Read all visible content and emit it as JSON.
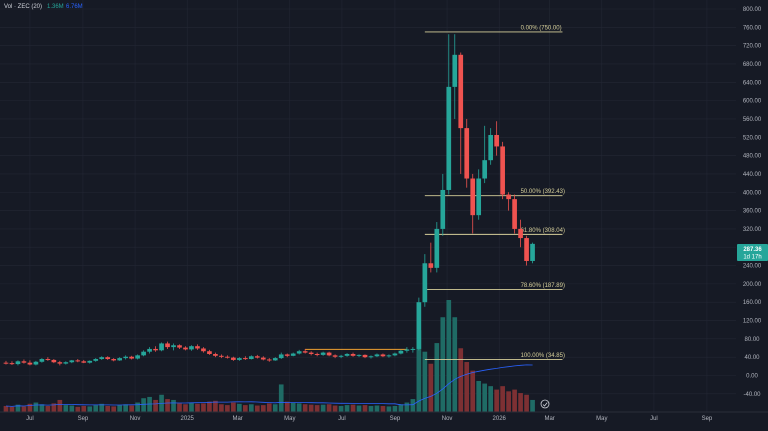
{
  "volume_legend": {
    "prefix": "Vol · ZEC (20)",
    "value_1": "1.36M",
    "value_2": "6.76M",
    "value_1_color": "#26a69a",
    "value_2_color": "#2962ff"
  },
  "price_badge": {
    "price": "287.36",
    "countdown": "1d 17h",
    "color": "#26a69a"
  },
  "colors": {
    "background": "#161a25",
    "up": "#26a69a",
    "down": "#ef5350",
    "fib_line": "#d6cf9a",
    "range_line": "#f0a030",
    "volume_ma": "#2962ff"
  },
  "chart_data": {
    "type": "candlestick",
    "symbol": "ZEC",
    "y_axis": {
      "ylim": [
        -60,
        800
      ],
      "ticks": [
        "800.00",
        "760.00",
        "720.00",
        "680.00",
        "640.00",
        "600.00",
        "560.00",
        "520.00",
        "480.00",
        "440.00",
        "400.00",
        "360.00",
        "320.00",
        "280.00",
        "240.00",
        "200.00",
        "160.00",
        "120.00",
        "80.00",
        "40.00",
        "0.00",
        "-40.00"
      ],
      "position": "right"
    },
    "x_axis": {
      "start": "2024-05-27",
      "end": "2026-10-05",
      "ticks": [
        {
          "label": "Jul",
          "date": "2024-07-01"
        },
        {
          "label": "Sep",
          "date": "2024-09-01"
        },
        {
          "label": "Nov",
          "date": "2024-11-01"
        },
        {
          "label": "2025",
          "date": "2025-01-01"
        },
        {
          "label": "Mar",
          "date": "2025-03-01"
        },
        {
          "label": "May",
          "date": "2025-05-01"
        },
        {
          "label": "Jul",
          "date": "2025-07-01"
        },
        {
          "label": "Sep",
          "date": "2025-09-01"
        },
        {
          "label": "Nov",
          "date": "2025-11-01"
        },
        {
          "label": "2026",
          "date": "2026-01-01"
        },
        {
          "label": "Mar",
          "date": "2026-03-01"
        },
        {
          "label": "May",
          "date": "2026-05-01"
        },
        {
          "label": "Jul",
          "date": "2026-07-01"
        },
        {
          "label": "Sep",
          "date": "2026-09-01"
        }
      ]
    },
    "fibonacci_levels": [
      {
        "label": "0.00% (750.00)",
        "value": 750.0
      },
      {
        "label": "50.00% (392.43)",
        "value": 392.43
      },
      {
        "label": "61.80% (308.04)",
        "value": 308.04
      },
      {
        "label": "78.60% (187.89)",
        "value": 187.89
      },
      {
        "label": "100.00% (34.85)",
        "value": 34.85
      }
    ],
    "range_line": {
      "from": "2025-05-19",
      "to": "2025-09-15",
      "value": 57
    },
    "volume_panel_ylim": [
      0,
      520
    ],
    "candles": [
      {
        "date": "2024-06-03",
        "o": 28,
        "h": 32,
        "l": 24,
        "c": 27,
        "v": 70
      },
      {
        "date": "2024-06-10",
        "o": 27,
        "h": 31,
        "l": 23,
        "c": 25,
        "v": 60
      },
      {
        "date": "2024-06-17",
        "o": 25,
        "h": 33,
        "l": 22,
        "c": 31,
        "v": 85
      },
      {
        "date": "2024-06-24",
        "o": 31,
        "h": 35,
        "l": 26,
        "c": 28,
        "v": 65
      },
      {
        "date": "2024-07-01",
        "o": 28,
        "h": 33,
        "l": 22,
        "c": 24,
        "v": 95
      },
      {
        "date": "2024-07-08",
        "o": 24,
        "h": 32,
        "l": 22,
        "c": 30,
        "v": 110
      },
      {
        "date": "2024-07-15",
        "o": 30,
        "h": 38,
        "l": 28,
        "c": 36,
        "v": 90
      },
      {
        "date": "2024-07-22",
        "o": 36,
        "h": 40,
        "l": 32,
        "c": 34,
        "v": 70
      },
      {
        "date": "2024-07-29",
        "o": 34,
        "h": 36,
        "l": 27,
        "c": 29,
        "v": 100
      },
      {
        "date": "2024-08-05",
        "o": 29,
        "h": 32,
        "l": 22,
        "c": 26,
        "v": 140
      },
      {
        "date": "2024-08-12",
        "o": 26,
        "h": 31,
        "l": 24,
        "c": 29,
        "v": 80
      },
      {
        "date": "2024-08-19",
        "o": 29,
        "h": 34,
        "l": 27,
        "c": 33,
        "v": 75
      },
      {
        "date": "2024-08-26",
        "o": 33,
        "h": 36,
        "l": 29,
        "c": 31,
        "v": 60
      },
      {
        "date": "2024-09-02",
        "o": 31,
        "h": 34,
        "l": 27,
        "c": 28,
        "v": 70
      },
      {
        "date": "2024-09-09",
        "o": 28,
        "h": 33,
        "l": 26,
        "c": 32,
        "v": 65
      },
      {
        "date": "2024-09-16",
        "o": 32,
        "h": 38,
        "l": 30,
        "c": 36,
        "v": 80
      },
      {
        "date": "2024-09-23",
        "o": 36,
        "h": 42,
        "l": 34,
        "c": 40,
        "v": 95
      },
      {
        "date": "2024-09-30",
        "o": 40,
        "h": 42,
        "l": 34,
        "c": 36,
        "v": 70
      },
      {
        "date": "2024-10-07",
        "o": 36,
        "h": 38,
        "l": 31,
        "c": 33,
        "v": 65
      },
      {
        "date": "2024-10-14",
        "o": 33,
        "h": 40,
        "l": 32,
        "c": 38,
        "v": 80
      },
      {
        "date": "2024-10-21",
        "o": 38,
        "h": 44,
        "l": 35,
        "c": 41,
        "v": 90
      },
      {
        "date": "2024-10-28",
        "o": 41,
        "h": 43,
        "l": 35,
        "c": 37,
        "v": 75
      },
      {
        "date": "2024-11-04",
        "o": 37,
        "h": 46,
        "l": 35,
        "c": 44,
        "v": 110
      },
      {
        "date": "2024-11-11",
        "o": 44,
        "h": 55,
        "l": 42,
        "c": 52,
        "v": 160
      },
      {
        "date": "2024-11-18",
        "o": 52,
        "h": 62,
        "l": 48,
        "c": 58,
        "v": 175
      },
      {
        "date": "2024-11-25",
        "o": 58,
        "h": 64,
        "l": 52,
        "c": 55,
        "v": 140
      },
      {
        "date": "2024-12-02",
        "o": 55,
        "h": 72,
        "l": 53,
        "c": 70,
        "v": 200
      },
      {
        "date": "2024-12-09",
        "o": 70,
        "h": 74,
        "l": 58,
        "c": 62,
        "v": 150
      },
      {
        "date": "2024-12-16",
        "o": 62,
        "h": 70,
        "l": 55,
        "c": 66,
        "v": 140
      },
      {
        "date": "2024-12-23",
        "o": 66,
        "h": 68,
        "l": 58,
        "c": 61,
        "v": 100
      },
      {
        "date": "2024-12-30",
        "o": 61,
        "h": 64,
        "l": 55,
        "c": 57,
        "v": 90
      },
      {
        "date": "2025-01-06",
        "o": 57,
        "h": 66,
        "l": 54,
        "c": 64,
        "v": 110
      },
      {
        "date": "2025-01-13",
        "o": 64,
        "h": 68,
        "l": 56,
        "c": 59,
        "v": 95
      },
      {
        "date": "2025-01-20",
        "o": 59,
        "h": 62,
        "l": 50,
        "c": 53,
        "v": 100
      },
      {
        "date": "2025-01-27",
        "o": 53,
        "h": 56,
        "l": 45,
        "c": 47,
        "v": 120
      },
      {
        "date": "2025-02-03",
        "o": 47,
        "h": 50,
        "l": 40,
        "c": 43,
        "v": 130
      },
      {
        "date": "2025-02-10",
        "o": 43,
        "h": 46,
        "l": 38,
        "c": 41,
        "v": 90
      },
      {
        "date": "2025-02-17",
        "o": 41,
        "h": 44,
        "l": 37,
        "c": 39,
        "v": 80
      },
      {
        "date": "2025-02-24",
        "o": 39,
        "h": 41,
        "l": 32,
        "c": 34,
        "v": 110
      },
      {
        "date": "2025-03-03",
        "o": 34,
        "h": 40,
        "l": 32,
        "c": 38,
        "v": 95
      },
      {
        "date": "2025-03-10",
        "o": 38,
        "h": 42,
        "l": 34,
        "c": 36,
        "v": 80
      },
      {
        "date": "2025-03-17",
        "o": 36,
        "h": 44,
        "l": 35,
        "c": 42,
        "v": 90
      },
      {
        "date": "2025-03-24",
        "o": 42,
        "h": 45,
        "l": 37,
        "c": 39,
        "v": 75
      },
      {
        "date": "2025-03-31",
        "o": 39,
        "h": 42,
        "l": 33,
        "c": 35,
        "v": 80
      },
      {
        "date": "2025-04-07",
        "o": 35,
        "h": 38,
        "l": 30,
        "c": 33,
        "v": 100
      },
      {
        "date": "2025-04-14",
        "o": 33,
        "h": 40,
        "l": 32,
        "c": 38,
        "v": 90
      },
      {
        "date": "2025-04-21",
        "o": 38,
        "h": 50,
        "l": 36,
        "c": 46,
        "v": 320
      },
      {
        "date": "2025-04-28",
        "o": 46,
        "h": 48,
        "l": 40,
        "c": 43,
        "v": 120
      },
      {
        "date": "2025-05-05",
        "o": 43,
        "h": 50,
        "l": 42,
        "c": 48,
        "v": 110
      },
      {
        "date": "2025-05-12",
        "o": 48,
        "h": 56,
        "l": 46,
        "c": 53,
        "v": 100
      },
      {
        "date": "2025-05-19",
        "o": 53,
        "h": 58,
        "l": 48,
        "c": 50,
        "v": 90
      },
      {
        "date": "2025-05-26",
        "o": 50,
        "h": 53,
        "l": 44,
        "c": 47,
        "v": 85
      },
      {
        "date": "2025-06-02",
        "o": 47,
        "h": 50,
        "l": 42,
        "c": 45,
        "v": 80
      },
      {
        "date": "2025-06-09",
        "o": 45,
        "h": 52,
        "l": 43,
        "c": 50,
        "v": 85
      },
      {
        "date": "2025-06-16",
        "o": 50,
        "h": 52,
        "l": 42,
        "c": 44,
        "v": 90
      },
      {
        "date": "2025-06-23",
        "o": 44,
        "h": 46,
        "l": 38,
        "c": 41,
        "v": 75
      },
      {
        "date": "2025-06-30",
        "o": 41,
        "h": 45,
        "l": 38,
        "c": 43,
        "v": 70
      },
      {
        "date": "2025-07-07",
        "o": 43,
        "h": 49,
        "l": 41,
        "c": 47,
        "v": 80
      },
      {
        "date": "2025-07-14",
        "o": 47,
        "h": 50,
        "l": 41,
        "c": 43,
        "v": 85
      },
      {
        "date": "2025-07-21",
        "o": 43,
        "h": 46,
        "l": 40,
        "c": 45,
        "v": 75
      },
      {
        "date": "2025-07-28",
        "o": 45,
        "h": 46,
        "l": 38,
        "c": 40,
        "v": 80
      },
      {
        "date": "2025-08-04",
        "o": 40,
        "h": 44,
        "l": 37,
        "c": 42,
        "v": 70
      },
      {
        "date": "2025-08-11",
        "o": 42,
        "h": 48,
        "l": 40,
        "c": 46,
        "v": 75
      },
      {
        "date": "2025-08-18",
        "o": 46,
        "h": 48,
        "l": 40,
        "c": 42,
        "v": 70
      },
      {
        "date": "2025-08-25",
        "o": 42,
        "h": 46,
        "l": 39,
        "c": 44,
        "v": 65
      },
      {
        "date": "2025-09-01",
        "o": 44,
        "h": 50,
        "l": 42,
        "c": 48,
        "v": 70
      },
      {
        "date": "2025-09-08",
        "o": 48,
        "h": 56,
        "l": 46,
        "c": 54,
        "v": 90
      },
      {
        "date": "2025-09-15",
        "o": 54,
        "h": 62,
        "l": 50,
        "c": 57,
        "v": 110
      },
      {
        "date": "2025-09-22",
        "o": 57,
        "h": 62,
        "l": 50,
        "c": 58,
        "v": 150
      },
      {
        "date": "2025-09-29",
        "o": 58,
        "h": 170,
        "l": 55,
        "c": 160,
        "v": 950
      },
      {
        "date": "2025-10-06",
        "o": 160,
        "h": 265,
        "l": 150,
        "c": 245,
        "v": 700
      },
      {
        "date": "2025-10-13",
        "o": 245,
        "h": 290,
        "l": 225,
        "c": 235,
        "v": 560
      },
      {
        "date": "2025-10-20",
        "o": 235,
        "h": 335,
        "l": 225,
        "c": 320,
        "v": 800
      },
      {
        "date": "2025-10-27",
        "o": 320,
        "h": 440,
        "l": 305,
        "c": 405,
        "v": 1100
      },
      {
        "date": "2025-11-03",
        "o": 405,
        "h": 745,
        "l": 395,
        "c": 630,
        "v": 1300
      },
      {
        "date": "2025-11-10",
        "o": 630,
        "h": 745,
        "l": 560,
        "c": 700,
        "v": 1100
      },
      {
        "date": "2025-11-17",
        "o": 700,
        "h": 705,
        "l": 440,
        "c": 540,
        "v": 740
      },
      {
        "date": "2025-11-24",
        "o": 540,
        "h": 560,
        "l": 410,
        "c": 430,
        "v": 580
      },
      {
        "date": "2025-12-01",
        "o": 430,
        "h": 440,
        "l": 310,
        "c": 350,
        "v": 480
      },
      {
        "date": "2025-12-08",
        "o": 350,
        "h": 450,
        "l": 340,
        "c": 430,
        "v": 360
      },
      {
        "date": "2025-12-15",
        "o": 430,
        "h": 545,
        "l": 420,
        "c": 470,
        "v": 330
      },
      {
        "date": "2025-12-22",
        "o": 470,
        "h": 540,
        "l": 460,
        "c": 525,
        "v": 300
      },
      {
        "date": "2025-12-29",
        "o": 525,
        "h": 555,
        "l": 480,
        "c": 500,
        "v": 260
      },
      {
        "date": "2026-01-05",
        "o": 500,
        "h": 510,
        "l": 385,
        "c": 395,
        "v": 300
      },
      {
        "date": "2026-01-12",
        "o": 395,
        "h": 400,
        "l": 360,
        "c": 385,
        "v": 240
      },
      {
        "date": "2026-01-19",
        "o": 385,
        "h": 395,
        "l": 310,
        "c": 320,
        "v": 260
      },
      {
        "date": "2026-01-26",
        "o": 320,
        "h": 340,
        "l": 280,
        "c": 300,
        "v": 220
      },
      {
        "date": "2026-02-02",
        "o": 300,
        "h": 305,
        "l": 240,
        "c": 250,
        "v": 200
      },
      {
        "date": "2026-02-09",
        "o": 250,
        "h": 290,
        "l": 245,
        "c": 287.36,
        "v": 140
      }
    ]
  }
}
